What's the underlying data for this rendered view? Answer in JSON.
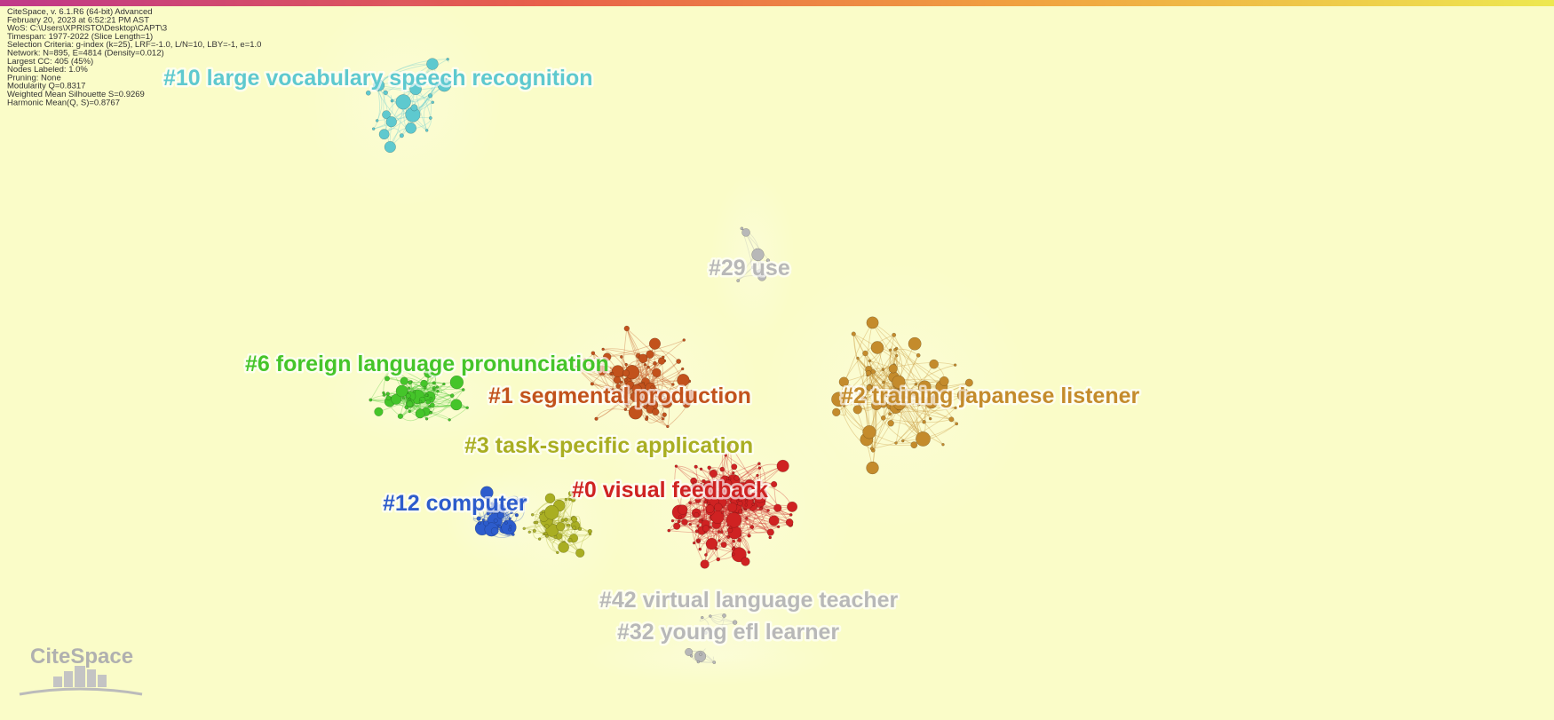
{
  "info": {
    "lines": [
      "CiteSpace, v. 6.1.R6 (64-bit) Advanced",
      "February 20, 2023 at 6:52:21 PM AST",
      "WoS: C:\\Users\\XPRISTO\\Desktop\\CAPT\\3",
      "Timespan: 1977-2022 (Slice Length=1)",
      "Selection Criteria: g-index (k=25), LRF=-1.0, L/N=10, LBY=-1, e=1.0",
      "Network: N=895, E=4814 (Density=0.012)",
      "Largest CC: 405 (45%)",
      "Nodes Labeled: 1.0%",
      "Pruning: None",
      "Modularity Q=0.8317",
      "Weighted Mean Silhouette S=0.9269",
      "Harmonic Mean(Q, S)=0.8767"
    ]
  },
  "clusters": [
    {
      "label": "#10 large vocabulary speech recognition",
      "color": "#5ec9cf"
    },
    {
      "label": "#29 use",
      "color": "#b8b8b8"
    },
    {
      "label": "#6 foreign language pronunciation",
      "color": "#45c52a"
    },
    {
      "label": "#1 segmental production",
      "color": "#c2521c"
    },
    {
      "label": "#2 training japanese listener",
      "color": "#c48b2c"
    },
    {
      "label": "#3 task-specific application",
      "color": "#a9ae22"
    },
    {
      "label": "#0 visual feedback",
      "color": "#cf2222"
    },
    {
      "label": "#12 computer",
      "color": "#2d5ccc"
    },
    {
      "label": "#42 virtual language teacher",
      "color": "#b8b8b8"
    },
    {
      "label": "#32 young efl learner",
      "color": "#b8b8b8"
    }
  ],
  "logo": {
    "text": "CiteSpace"
  }
}
